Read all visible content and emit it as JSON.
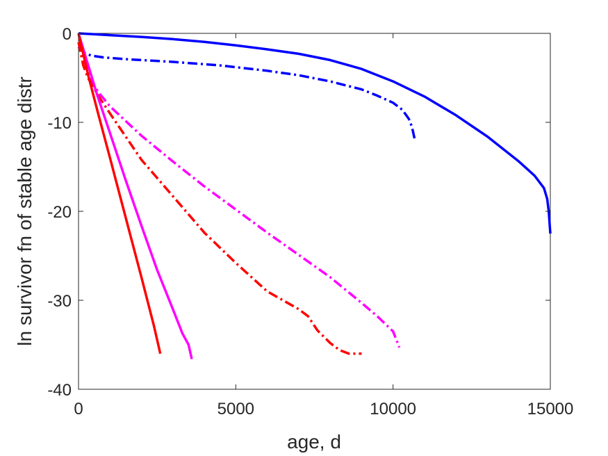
{
  "chart_data": {
    "type": "line",
    "xlabel": "age, d",
    "ylabel": "ln survivor fn of stable age distr",
    "xlim": [
      0,
      15000
    ],
    "ylim": [
      -40,
      0
    ],
    "xticks": [
      0,
      5000,
      10000,
      15000
    ],
    "yticks": [
      0,
      -10,
      -20,
      -30,
      -40
    ],
    "xtick_labels": [
      "0",
      "5000",
      "10000",
      "15000"
    ],
    "ytick_labels": [
      "0",
      "-10",
      "-20",
      "-30",
      "-40"
    ],
    "grid": false,
    "legend": "none",
    "series": [
      {
        "color": "#0000ff",
        "style": "solid",
        "x": [
          0,
          500,
          1000,
          2000,
          3000,
          4000,
          5000,
          6000,
          7000,
          8000,
          9000,
          10000,
          11000,
          12000,
          13000,
          14000,
          14500,
          14800,
          14900,
          14950,
          15000
        ],
        "y": [
          0,
          -0.1,
          -0.2,
          -0.4,
          -0.65,
          -0.95,
          -1.35,
          -1.8,
          -2.3,
          -3.0,
          -4.0,
          -5.4,
          -7.1,
          -9.2,
          -11.6,
          -14.4,
          -16.0,
          -17.4,
          -18.6,
          -20.0,
          -22.5
        ]
      },
      {
        "color": "#0000ff",
        "style": "dashdot",
        "x": [
          0,
          100,
          200,
          400,
          800,
          1500,
          3000,
          4500,
          6000,
          7000,
          8000,
          9000,
          9500,
          10000,
          10300,
          10500,
          10600,
          10700
        ],
        "y": [
          -1.5,
          -1.9,
          -2.2,
          -2.5,
          -2.7,
          -2.9,
          -3.2,
          -3.6,
          -4.2,
          -4.7,
          -5.4,
          -6.3,
          -7.0,
          -7.8,
          -8.6,
          -9.6,
          -10.5,
          -12.1
        ]
      },
      {
        "color": "#ff00ff",
        "style": "dashdot",
        "x": [
          0,
          200,
          400,
          700,
          1000,
          2000,
          3000,
          4000,
          5000,
          6000,
          7000,
          8000,
          9000,
          9500,
          10000,
          10200
        ],
        "y": [
          -1.0,
          -3.2,
          -5.5,
          -6.9,
          -8.2,
          -11.5,
          -14.4,
          -17.2,
          -19.8,
          -22.4,
          -24.9,
          -27.4,
          -30.3,
          -31.8,
          -33.5,
          -35.3
        ]
      },
      {
        "color": "#ff0000",
        "style": "dashdot",
        "x": [
          0,
          150,
          300,
          500,
          700,
          1000,
          2000,
          3000,
          4000,
          5000,
          6000,
          7000,
          7300,
          7600,
          8000,
          8300,
          8600,
          9000
        ],
        "y": [
          -1.0,
          -3.6,
          -5.0,
          -6.2,
          -7.4,
          -9.0,
          -14.2,
          -18.3,
          -22.4,
          -25.8,
          -29.0,
          -31.0,
          -31.8,
          -33.4,
          -34.8,
          -35.6,
          -36.0,
          -36.0
        ]
      },
      {
        "color": "#ff00ff",
        "style": "solid",
        "x": [
          0,
          300,
          600,
          1000,
          1500,
          2000,
          2500,
          3000,
          3300,
          3500,
          3600
        ],
        "y": [
          0,
          -3.5,
          -7.0,
          -11.2,
          -16.5,
          -21.6,
          -26.6,
          -31.0,
          -33.7,
          -35.0,
          -36.6
        ]
      },
      {
        "color": "#ff0000",
        "style": "solid",
        "x": [
          0,
          300,
          600,
          1000,
          1500,
          2000,
          2400,
          2600
        ],
        "y": [
          0,
          -4.6,
          -8.7,
          -14.0,
          -20.7,
          -27.4,
          -32.9,
          -36.0
        ]
      }
    ]
  }
}
